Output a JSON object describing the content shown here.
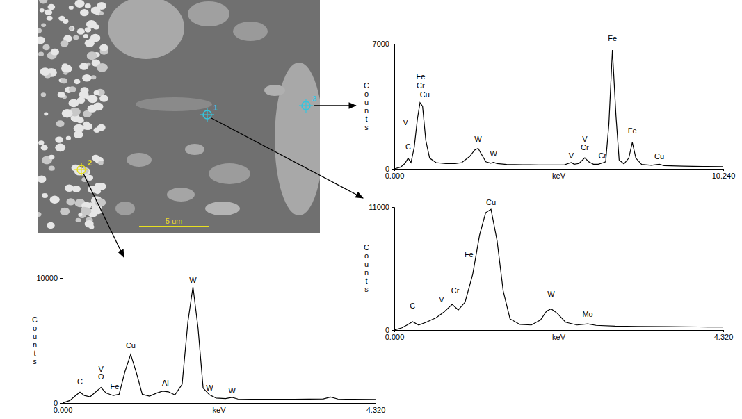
{
  "micrograph": {
    "markers": [
      {
        "label": "1",
        "color": "#33c6e0"
      },
      {
        "label": "2",
        "color": "#e8e020"
      },
      {
        "label": "3",
        "color": "#33c6e0"
      }
    ],
    "scale_bar": "5 um"
  },
  "chart_data": [
    {
      "type": "line",
      "color": "#000000",
      "x_label": "keV",
      "y_label": "Counts",
      "xlim": [
        0,
        10.24
      ],
      "ylim": [
        0,
        7000
      ],
      "xticks": [
        {
          "value": 0,
          "label": "0.000"
        },
        {
          "value": 10.24,
          "label": "10.240"
        }
      ],
      "yticks": [
        0,
        7000
      ],
      "x": [
        0,
        0.2,
        0.33,
        0.43,
        0.52,
        0.62,
        0.72,
        0.8,
        0.88,
        0.98,
        1.1,
        1.3,
        1.6,
        1.9,
        2.1,
        2.35,
        2.5,
        2.61,
        2.72,
        2.85,
        3.0,
        3.09,
        3.2,
        3.5,
        4.0,
        4.5,
        5.0,
        5.3,
        5.45,
        5.51,
        5.6,
        5.75,
        5.93,
        6.05,
        6.2,
        6.35,
        6.48,
        6.58,
        6.68,
        6.79,
        6.9,
        7.0,
        7.15,
        7.3,
        7.41,
        7.52,
        7.7,
        8.0,
        8.25,
        8.4,
        9.0,
        9.6,
        10.24
      ],
      "values": [
        0,
        100,
        300,
        600,
        350,
        1200,
        2800,
        3700,
        3500,
        1600,
        600,
        350,
        300,
        300,
        350,
        700,
        1050,
        1150,
        800,
        400,
        320,
        360,
        300,
        250,
        230,
        220,
        220,
        230,
        320,
        350,
        260,
        300,
        620,
        400,
        260,
        260,
        330,
        400,
        2500,
        6650,
        3000,
        500,
        280,
        600,
        1480,
        600,
        250,
        200,
        260,
        180,
        150,
        130,
        120
      ],
      "annotations": [
        {
          "text": "C",
          "x": 0.43,
          "y": 1100
        },
        {
          "text": "V",
          "x": 0.35,
          "y": 2450
        },
        {
          "text": "Fe",
          "x": 0.82,
          "y": 5000
        },
        {
          "text": "Cr",
          "x": 0.82,
          "y": 4500
        },
        {
          "text": "Cu",
          "x": 0.95,
          "y": 4000
        },
        {
          "text": "W",
          "x": 2.61,
          "y": 1500
        },
        {
          "text": "W",
          "x": 3.09,
          "y": 700
        },
        {
          "text": "V",
          "x": 5.51,
          "y": 600
        },
        {
          "text": "V",
          "x": 5.93,
          "y": 1500
        },
        {
          "text": "Cr",
          "x": 5.93,
          "y": 1050
        },
        {
          "text": "Cr",
          "x": 6.48,
          "y": 600
        },
        {
          "text": "Fe",
          "x": 6.79,
          "y": 7150
        },
        {
          "text": "Fe",
          "x": 7.41,
          "y": 2000
        },
        {
          "text": "Cu",
          "x": 8.25,
          "y": 550
        }
      ]
    },
    {
      "type": "line",
      "color": "#000000",
      "x_label": "keV",
      "y_label": "Counts",
      "xlim": [
        0,
        4.32
      ],
      "ylim": [
        0,
        11000
      ],
      "xticks": [
        {
          "value": 0,
          "label": "0.000"
        },
        {
          "value": 4.32,
          "label": "4.320"
        }
      ],
      "yticks": [
        0,
        11000
      ],
      "x": [
        0,
        0.1,
        0.18,
        0.24,
        0.32,
        0.42,
        0.55,
        0.65,
        0.76,
        0.84,
        0.93,
        1.03,
        1.12,
        1.2,
        1.27,
        1.35,
        1.43,
        1.52,
        1.65,
        1.8,
        1.92,
        2.0,
        2.06,
        2.14,
        2.25,
        2.4,
        2.54,
        2.65,
        2.9,
        3.2,
        3.6,
        4.0,
        4.32
      ],
      "values": [
        0,
        200,
        500,
        750,
        450,
        700,
        1100,
        1600,
        2300,
        1800,
        2500,
        5000,
        8500,
        10500,
        10800,
        8000,
        3500,
        1000,
        500,
        450,
        900,
        1700,
        1900,
        1500,
        700,
        450,
        550,
        420,
        350,
        320,
        300,
        280,
        270
      ],
      "annotations": [
        {
          "text": "Cu",
          "x": 1.27,
          "y": 11200
        },
        {
          "text": "Fe",
          "x": 0.98,
          "y": 6500
        },
        {
          "text": "Cr",
          "x": 0.8,
          "y": 3300
        },
        {
          "text": "V",
          "x": 0.62,
          "y": 2500
        },
        {
          "text": "C",
          "x": 0.24,
          "y": 1900
        },
        {
          "text": "W",
          "x": 2.06,
          "y": 3000
        },
        {
          "text": "Mo",
          "x": 2.54,
          "y": 1200
        }
      ]
    },
    {
      "type": "line",
      "color": "#000000",
      "x_label": "keV",
      "y_label": "Counts",
      "xlim": [
        0,
        4.32
      ],
      "ylim": [
        0,
        10000
      ],
      "xticks": [
        {
          "value": 0,
          "label": "0.000"
        },
        {
          "value": 4.32,
          "label": "4.320"
        }
      ],
      "yticks": [
        0,
        10000
      ],
      "x": [
        0,
        0.1,
        0.18,
        0.24,
        0.3,
        0.38,
        0.46,
        0.53,
        0.6,
        0.7,
        0.78,
        0.86,
        0.94,
        1.02,
        1.1,
        1.2,
        1.3,
        1.38,
        1.46,
        1.55,
        1.65,
        1.73,
        1.8,
        1.87,
        1.94,
        2.03,
        2.12,
        2.25,
        2.34,
        2.42,
        2.8,
        3.2,
        3.6,
        3.7,
        3.8,
        4.32
      ],
      "values": [
        0,
        200,
        600,
        880,
        600,
        500,
        900,
        1250,
        800,
        600,
        700,
        2500,
        3880,
        2400,
        700,
        550,
        800,
        950,
        900,
        650,
        1500,
        6500,
        9290,
        6000,
        1200,
        650,
        400,
        350,
        450,
        320,
        300,
        300,
        330,
        480,
        320,
        280
      ],
      "annotations": [
        {
          "text": "C",
          "x": 0.24,
          "y": 1500
        },
        {
          "text": "V",
          "x": 0.53,
          "y": 2500
        },
        {
          "text": "O",
          "x": 0.53,
          "y": 1900
        },
        {
          "text": "Fe",
          "x": 0.72,
          "y": 1100
        },
        {
          "text": "Cu",
          "x": 0.94,
          "y": 4400
        },
        {
          "text": "Al",
          "x": 1.42,
          "y": 1400
        },
        {
          "text": "W",
          "x": 1.8,
          "y": 9600
        },
        {
          "text": "W",
          "x": 2.03,
          "y": 1000
        },
        {
          "text": "W",
          "x": 2.34,
          "y": 800
        }
      ]
    }
  ]
}
